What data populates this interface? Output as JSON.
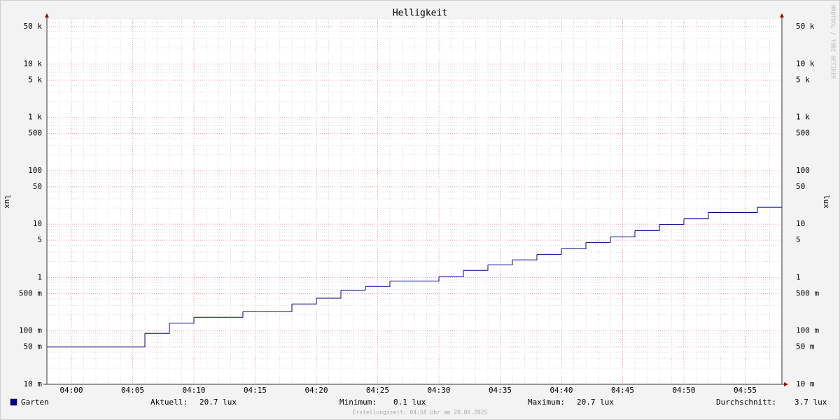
{
  "chart_data": {
    "type": "step-line",
    "title": "Helligkeit",
    "ylabel": "lux",
    "watermark": "RRDTOOL / TOBI OETIKER",
    "log_scale": true,
    "grid": true,
    "xlim": [
      "03:58",
      "04:58"
    ],
    "xticks": [
      "04:00",
      "04:05",
      "04:10",
      "04:15",
      "04:20",
      "04:25",
      "04:30",
      "04:35",
      "04:40",
      "04:45",
      "04:50",
      "04:55"
    ],
    "ylim": [
      0.01,
      70000
    ],
    "yticks": [
      {
        "value": 0.01,
        "label": "10 m"
      },
      {
        "value": 0.05,
        "label": "50 m"
      },
      {
        "value": 0.1,
        "label": "100 m"
      },
      {
        "value": 0.5,
        "label": "500 m"
      },
      1,
      5,
      10,
      50,
      100,
      500,
      {
        "value": 1000,
        "label": "1 k"
      },
      {
        "value": 5000,
        "label": "5 k"
      },
      {
        "value": 10000,
        "label": "10 k"
      },
      {
        "value": 50000,
        "label": "50 k"
      }
    ],
    "series": [
      {
        "name": "Garten",
        "color": "#000090",
        "x": [
          "03:58",
          "04:06",
          "04:08",
          "04:10",
          "04:14",
          "04:18",
          "04:20",
          "04:22",
          "04:24",
          "04:26",
          "04:30",
          "04:32",
          "04:34",
          "04:36",
          "04:38",
          "04:40",
          "04:42",
          "04:44",
          "04:46",
          "04:48",
          "04:50",
          "04:52",
          "04:56"
        ],
        "values": [
          0.05,
          0.09,
          0.14,
          0.18,
          0.23,
          0.32,
          0.41,
          0.58,
          0.68,
          0.86,
          1.04,
          1.36,
          1.73,
          2.14,
          2.72,
          3.46,
          4.54,
          5.78,
          7.58,
          9.93,
          12.6,
          16.6,
          20.7
        ]
      }
    ],
    "stats": [
      {
        "label": "Aktuell:",
        "value": "20.7 lux"
      },
      {
        "label": "Minimum:",
        "value": "0.1 lux"
      },
      {
        "label": "Maximum:",
        "value": "20.7 lux"
      },
      {
        "label": "Durchschnitt:",
        "value": "3.7 lux"
      }
    ],
    "footer": "Erstellungszeit: 04:58 Uhr am 20.06.2025"
  }
}
